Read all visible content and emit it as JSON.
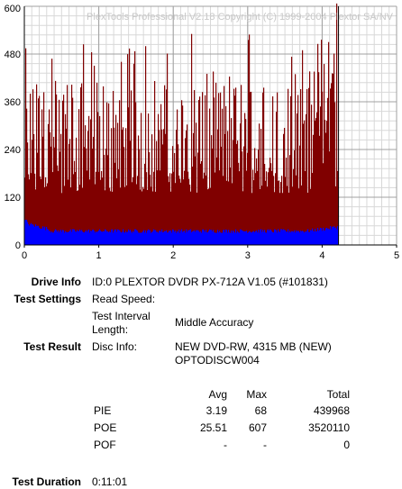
{
  "chart_data": {
    "type": "bar",
    "watermark": "PlexTools Professional V2.18 Copyright (C) 1999-2004 Plextor SA/NV",
    "x_ticks": [
      "0",
      "1",
      "2",
      "3",
      "4",
      "5"
    ],
    "y_ticks": [
      "0",
      "120",
      "240",
      "360",
      "480",
      "600"
    ],
    "xlim": [
      0,
      5
    ],
    "ylim": [
      0,
      600
    ],
    "data_end_x": 4.22,
    "grid": true,
    "series": [
      {
        "key": "poe",
        "color": "#800000",
        "baseline": 130,
        "typical_peak": 420,
        "max": 607
      },
      {
        "key": "pie",
        "color": "#0000ff",
        "avg": 3.19,
        "max": 68,
        "level_start": 55,
        "level_mid": 35,
        "level_end": 45
      }
    ]
  },
  "info": {
    "drive_info_label": "Drive Info",
    "drive_info_value": "ID:0 PLEXTOR DVDR PX-712A V1.05 (#101831)",
    "test_settings_label": "Test Settings",
    "read_speed_label": "Read Speed:",
    "read_speed_value": "",
    "interval_label_1": "Test Interval",
    "interval_label_2": "Length:",
    "interval_value": "Middle Accuracy",
    "test_result_label": "Test Result",
    "disc_info_label": "Disc Info:",
    "disc_info_line1": "NEW DVD-RW, 4315 MB (NEW)",
    "disc_info_line2": "OPTODISCW004",
    "duration_label": "Test Duration",
    "duration_value": "0:11:01"
  },
  "stats": {
    "headers": {
      "avg": "Avg",
      "max": "Max",
      "total": "Total"
    },
    "rows": [
      {
        "name": "PIE",
        "avg": "3.19",
        "max": "68",
        "total": "439968"
      },
      {
        "name": "POE",
        "avg": "25.51",
        "max": "607",
        "total": "3520110"
      },
      {
        "name": "POF",
        "avg": "-",
        "max": "-",
        "total": "0"
      }
    ]
  }
}
